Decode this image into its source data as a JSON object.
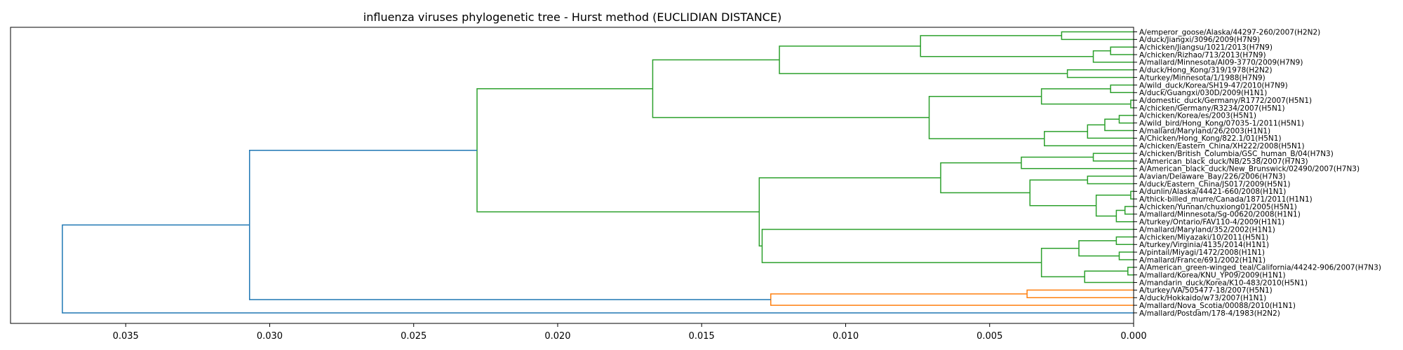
{
  "chart_data": {
    "type": "dendrogram",
    "title": "influenza viruses phylogenetic tree - Hurst method (EUCLIDIAN DISTANCE)",
    "orientation": "left",
    "xlim": [
      0.039,
      0.0
    ],
    "xticks": [
      0.035,
      0.03,
      0.025,
      0.02,
      0.015,
      0.01,
      0.005,
      0.0
    ],
    "xtick_labels": [
      "0.035",
      "0.030",
      "0.025",
      "0.020",
      "0.015",
      "0.010",
      "0.005",
      "0.000"
    ],
    "grid": false,
    "colors": {
      "green": "#2ca02c",
      "orange": "#ff7f0e",
      "blue": "#1f77b4",
      "frame": "#000000"
    },
    "leaves": [
      "A/emperor_goose/Alaska/44297-260/2007(H2N2)",
      "A/duck/Jiangxi/3096/2009(H7N9)",
      "A/chicken/Jiangsu/1021/2013(H7N9)",
      "A/chicken/Rizhao/713/2013(H7N9)",
      "A/mallard/Minnesota/AI09-3770/2009(H7N9)",
      "A/duck/Hong_Kong/319/1978(H2N2)",
      "A/turkey/Minnesota/1/1988(H7N9)",
      "A/wild_duck/Korea/SH19-47/2010(H7N9)",
      "A/duck/Guangxi/030D/2009(H1N1)",
      "A/domestic_duck/Germany/R1772/2007(H5N1)",
      "A/chicken/Germany/R3234/2007(H5N1)",
      "A/chicken/Korea/es/2003(H5N1)",
      "A/wild_bird/Hong_Kong/07035-1/2011(H5N1)",
      "A/mallard/Maryland/26/2003(H1N1)",
      "A/Chicken/Hong_Kong/822.1/01(H5N1)",
      "A/chicken/Eastern_China/XH222/2008(H5N1)",
      "A/chicken/British_Columbia/GSC_human_B/04(H7N3)",
      "A/American_black_duck/NB/2538/2007(H7N3)",
      "A/American_black_duck/New_Brunswick/02490/2007(H7N3)",
      "A/avian/Delaware_Bay/226/2006(H7N3)",
      "A/duck/Eastern_China/JS017/2009(H5N1)",
      "A/dunlin/Alaska/44421-660/2008(H1N1)",
      "A/thick-billed_murre/Canada/1871/2011(H1N1)",
      "A/chicken/Yunnan/chuxiong01/2005(H5N1)",
      "A/mallard/Minnesota/Sg-00620/2008(H1N1)",
      "A/turkey/Ontario/FAV110-4/2009(H1N1)",
      "A/mallard/Maryland/352/2002(H1N1)",
      "A/chicken/Miyazaki/10/2011(H5N1)",
      "A/turkey/Virginia/4135/2014(H1N1)",
      "A/pintail/Miyagi/1472/2008(H1N1)",
      "A/mallard/France/691/2002(H1N1)",
      "A/American_green-winged_teal/California/44242-906/2007(H7N3)",
      "A/mallard/Korea/KNU_YP09/2009(H1N1)",
      "A/mandarin_duck/Korea/K10-483/2010(H5N1)",
      "A/turkey/VA/505477-18/2007(H5N1)",
      "A/duck/Hokkaido/w73/2007(H1N1)",
      "A/mallard/Nova_Scotia/00088/2010(H1N1)",
      "A/mallard/Postdam/178-4/1983(H2N2)"
    ],
    "merges": [
      {
        "a": 0,
        "b": 1,
        "height": 0.0025,
        "color": "green"
      },
      {
        "a": 2,
        "b": 3,
        "height": 0.0008,
        "color": "green"
      },
      {
        "a": "c1",
        "b": 4,
        "height": 0.0014,
        "color": "green"
      },
      {
        "a": "c0",
        "b": "c2",
        "height": 0.0074,
        "color": "green"
      },
      {
        "a": 5,
        "b": 6,
        "height": 0.0023,
        "color": "green"
      },
      {
        "a": "c3",
        "b": "c4",
        "height": 0.0123,
        "color": "green"
      },
      {
        "a": 7,
        "b": 8,
        "height": 0.0008,
        "color": "green"
      },
      {
        "a": 9,
        "b": 10,
        "height": 0.0001,
        "color": "green"
      },
      {
        "a": "c6",
        "b": "c7",
        "height": 0.0032,
        "color": "green"
      },
      {
        "a": 11,
        "b": 12,
        "height": 0.0005,
        "color": "green"
      },
      {
        "a": "c9",
        "b": 13,
        "height": 0.001,
        "color": "green"
      },
      {
        "a": "c10",
        "b": 14,
        "height": 0.0016,
        "color": "green"
      },
      {
        "a": "c11",
        "b": 15,
        "height": 0.0031,
        "color": "green"
      },
      {
        "a": "c8",
        "b": "c12",
        "height": 0.0071,
        "color": "green"
      },
      {
        "a": "c5",
        "b": "c13",
        "height": 0.0167,
        "color": "green"
      },
      {
        "a": 16,
        "b": 17,
        "height": 0.0014,
        "color": "green"
      },
      {
        "a": "c15",
        "b": 18,
        "height": 0.0039,
        "color": "green"
      },
      {
        "a": 19,
        "b": 20,
        "height": 0.0016,
        "color": "green"
      },
      {
        "a": 21,
        "b": 22,
        "height": 0.0001,
        "color": "green"
      },
      {
        "a": 23,
        "b": 24,
        "height": 0.0003,
        "color": "green"
      },
      {
        "a": "c19",
        "b": 25,
        "height": 0.0006,
        "color": "green"
      },
      {
        "a": "c18",
        "b": "c20",
        "height": 0.0013,
        "color": "green"
      },
      {
        "a": "c17",
        "b": "c21",
        "height": 0.0036,
        "color": "green"
      },
      {
        "a": "c16",
        "b": "c22",
        "height": 0.0067,
        "color": "green"
      },
      {
        "a": 27,
        "b": 28,
        "height": 0.0006,
        "color": "green"
      },
      {
        "a": 29,
        "b": 30,
        "height": 0.0005,
        "color": "green"
      },
      {
        "a": "c24",
        "b": "c25",
        "height": 0.0019,
        "color": "green"
      },
      {
        "a": 31,
        "b": 32,
        "height": 0.0002,
        "color": "green"
      },
      {
        "a": "c27",
        "b": 33,
        "height": 0.0017,
        "color": "green"
      },
      {
        "a": "c26",
        "b": "c28",
        "height": 0.0032,
        "color": "green"
      },
      {
        "a": 26,
        "b": "c29",
        "height": 0.0129,
        "color": "green"
      },
      {
        "a": "c23",
        "b": "c30",
        "height": 0.013,
        "color": "green"
      },
      {
        "a": "c14",
        "b": "c31",
        "height": 0.0228,
        "color": "green"
      },
      {
        "a": 34,
        "b": 35,
        "height": 0.0037,
        "color": "orange"
      },
      {
        "a": "c33",
        "b": 36,
        "height": 0.0126,
        "color": "orange"
      },
      {
        "a": "c32",
        "b": "c34",
        "height": 0.0307,
        "color": "blue"
      },
      {
        "a": "c35",
        "b": 37,
        "height": 0.0372,
        "color": "blue"
      }
    ]
  }
}
